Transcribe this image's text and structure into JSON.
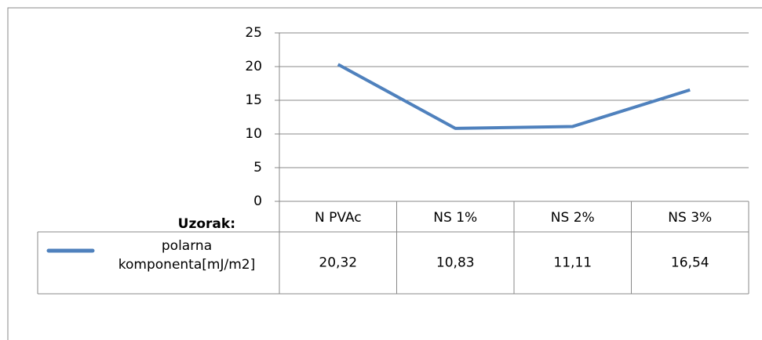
{
  "chart_data": {
    "type": "line",
    "xlabel": "Uzorak:",
    "categories": [
      "N PVAc",
      "NS 1%",
      "NS 2%",
      "NS 3%"
    ],
    "series": [
      {
        "name": "polarna komponenta[mJ/m2]",
        "color": "#4f81bd",
        "values": [
          20.32,
          10.83,
          11.11,
          16.54
        ],
        "value_labels": [
          "20,32",
          "10,83",
          "11,11",
          "16,54"
        ]
      }
    ],
    "ylim": [
      0,
      25
    ],
    "yticks": [
      0,
      5,
      10,
      15,
      20,
      25
    ],
    "grid": true
  }
}
